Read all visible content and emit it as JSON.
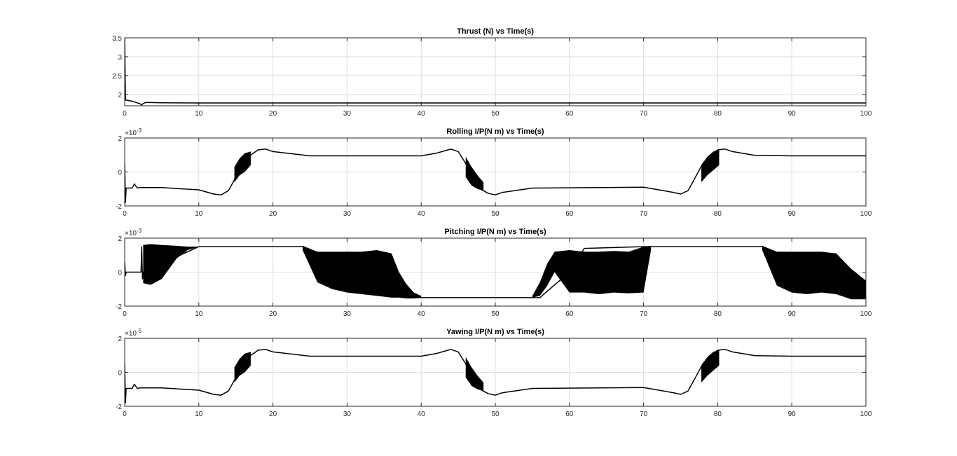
{
  "figure": {
    "background": "#ffffff",
    "line_color": "#000000",
    "grid": true
  },
  "chart_data": [
    {
      "type": "line",
      "title": "Thrust (N) vs Time(s)",
      "xlim": [
        0,
        100
      ],
      "ylim": [
        1.7,
        3.5
      ],
      "xticks": [
        "0",
        "10",
        "20",
        "30",
        "40",
        "50",
        "60",
        "70",
        "80",
        "90",
        "100"
      ],
      "yticks": [
        {
          "v": 2,
          "label": "2"
        },
        {
          "v": 2.5,
          "label": "2.5"
        },
        {
          "v": 3,
          "label": "3"
        },
        {
          "v": 3.5,
          "label": "3.5"
        }
      ],
      "exponent": "",
      "x": [
        0,
        0.1,
        0.2,
        1,
        1.5,
        2,
        2.3,
        2.5,
        2.8,
        3.5,
        5,
        10,
        20,
        40,
        60,
        80,
        100
      ],
      "y": [
        3.5,
        1.85,
        1.85,
        1.82,
        1.79,
        1.76,
        1.72,
        1.76,
        1.785,
        1.785,
        1.78,
        1.775,
        1.775,
        1.775,
        1.775,
        1.775,
        1.775
      ],
      "bands": []
    },
    {
      "type": "line",
      "title": "Rolling I/P(N m) vs Time(s)",
      "xlim": [
        0,
        100
      ],
      "ylim": [
        -2,
        2
      ],
      "xticks": [
        "0",
        "10",
        "20",
        "30",
        "40",
        "50",
        "60",
        "70",
        "80",
        "90",
        "100"
      ],
      "yticks": [
        {
          "v": -2,
          "label": "-2"
        },
        {
          "v": 0,
          "label": "0"
        },
        {
          "v": 2,
          "label": "2"
        }
      ],
      "exponent": "-3",
      "x": [
        0,
        0.1,
        0.2,
        0.3,
        1,
        1.3,
        1.7,
        2,
        5,
        10,
        12,
        13,
        14,
        15,
        16,
        17,
        18,
        19,
        20,
        25,
        35,
        40,
        42,
        44,
        45,
        46,
        47,
        48,
        49,
        50,
        51,
        55,
        70,
        74,
        75,
        76,
        77,
        78,
        79,
        80,
        81,
        82,
        85,
        90,
        100
      ],
      "y": [
        0.5,
        -1.8,
        -0.95,
        -0.95,
        -0.95,
        -0.7,
        -0.95,
        -0.92,
        -0.92,
        -1.05,
        -1.3,
        -1.35,
        -1.1,
        -0.3,
        0.4,
        1.0,
        1.3,
        1.35,
        1.2,
        0.95,
        0.95,
        0.95,
        1.1,
        1.35,
        1.2,
        0.5,
        -0.4,
        -1.0,
        -1.25,
        -1.35,
        -1.2,
        -0.95,
        -0.9,
        -1.2,
        -1.3,
        -1.1,
        -0.3,
        0.5,
        1.0,
        1.3,
        1.35,
        1.2,
        0.98,
        0.95,
        0.95
      ],
      "bands": [
        {
          "x": [
            14.8,
            15.5,
            16.2,
            17.0
          ],
          "lo": [
            -0.6,
            -0.2,
            0.0,
            0.4
          ],
          "hi": [
            0.3,
            0.8,
            1.1,
            1.2
          ]
        },
        {
          "x": [
            46.0,
            46.8,
            47.6,
            48.4
          ],
          "lo": [
            -0.3,
            -0.8,
            -1.0,
            -1.1
          ],
          "hi": [
            0.9,
            0.3,
            -0.2,
            -0.6
          ]
        },
        {
          "x": [
            77.8,
            78.6,
            79.4,
            80.2
          ],
          "lo": [
            -0.6,
            -0.2,
            0.1,
            0.4
          ],
          "hi": [
            0.4,
            0.9,
            1.2,
            1.3
          ]
        }
      ]
    },
    {
      "type": "line",
      "title": "Pitching I/P(N m) vs Time(s)",
      "xlim": [
        0,
        100
      ],
      "ylim": [
        -2,
        2
      ],
      "xticks": [
        "0",
        "10",
        "20",
        "30",
        "40",
        "50",
        "60",
        "70",
        "80",
        "90",
        "100"
      ],
      "yticks": [
        {
          "v": -2,
          "label": "-2"
        },
        {
          "v": 0,
          "label": "0"
        },
        {
          "v": 2,
          "label": "2"
        }
      ],
      "exponent": "-3",
      "x": [
        0,
        0.1,
        0.2,
        2.2,
        2.3,
        2.4,
        2.5,
        10,
        20,
        24,
        30,
        36,
        38,
        40,
        50,
        54,
        56,
        60,
        62,
        70,
        80,
        86,
        90,
        95,
        100
      ],
      "y": [
        0.6,
        -0.2,
        0.0,
        0.0,
        1.5,
        -0.4,
        0.0,
        1.5,
        1.5,
        1.5,
        0.0,
        -1.4,
        -1.5,
        -1.5,
        -1.5,
        -1.5,
        -1.5,
        0.0,
        1.4,
        1.5,
        1.5,
        1.5,
        0.0,
        -1.0,
        -0.9
      ],
      "bands": [
        {
          "x": [
            2.5,
            3.5,
            5.0,
            7.0,
            8.5,
            10.0
          ],
          "lo": [
            -0.65,
            -0.75,
            -0.4,
            0.8,
            1.3,
            1.5
          ],
          "hi": [
            1.6,
            1.65,
            1.6,
            1.55,
            1.5,
            1.5
          ]
        },
        {
          "x": [
            24.0,
            26.0,
            28.0,
            30.0,
            32.0,
            34.0,
            36.0,
            37.0,
            38.0,
            39.0,
            40.0
          ],
          "lo": [
            1.3,
            -0.6,
            -1.0,
            -1.2,
            -1.3,
            -1.4,
            -1.5,
            -1.5,
            -1.55,
            -1.55,
            -1.5
          ],
          "hi": [
            1.55,
            1.2,
            1.2,
            1.2,
            1.2,
            1.3,
            1.1,
            0.0,
            -0.7,
            -1.2,
            -1.4
          ]
        },
        {
          "x": [
            55.0,
            56.0,
            57.0,
            58.0,
            60.0,
            62.0,
            64.0,
            66.0,
            68.0,
            70.0,
            71.0
          ],
          "lo": [
            -1.5,
            -1.4,
            -0.8,
            0.0,
            -1.2,
            -1.2,
            -1.3,
            -1.2,
            -1.25,
            -1.2,
            1.3
          ],
          "hi": [
            -1.4,
            -0.6,
            0.5,
            1.2,
            1.3,
            1.2,
            1.2,
            1.25,
            1.2,
            1.5,
            1.55
          ]
        },
        {
          "x": [
            86.0,
            88.0,
            90.0,
            92.0,
            94.0,
            96.0,
            98.0,
            100.0
          ],
          "lo": [
            1.3,
            -0.8,
            -1.2,
            -1.3,
            -1.2,
            -1.3,
            -1.6,
            -1.6
          ],
          "hi": [
            1.55,
            1.2,
            1.2,
            1.2,
            1.2,
            1.1,
            0.2,
            -0.5
          ]
        }
      ]
    },
    {
      "type": "line",
      "title": "Yawing I/P(N m) vs Time(s)",
      "xlim": [
        0,
        100
      ],
      "ylim": [
        -2,
        2
      ],
      "xticks": [
        "0",
        "10",
        "20",
        "30",
        "40",
        "50",
        "60",
        "70",
        "80",
        "90",
        "100"
      ],
      "yticks": [
        {
          "v": -2,
          "label": "-2"
        },
        {
          "v": 0,
          "label": "0"
        },
        {
          "v": 2,
          "label": "2"
        }
      ],
      "exponent": "-5",
      "x": [
        0,
        0.1,
        0.2,
        0.3,
        1,
        1.3,
        1.7,
        2,
        5,
        10,
        12,
        13,
        14,
        15,
        16,
        17,
        18,
        19,
        20,
        25,
        35,
        40,
        42,
        44,
        45,
        46,
        47,
        48,
        49,
        50,
        51,
        55,
        70,
        74,
        75,
        76,
        77,
        78,
        79,
        80,
        81,
        82,
        85,
        90,
        100
      ],
      "y": [
        0.5,
        -1.8,
        -0.95,
        -0.95,
        -0.95,
        -0.7,
        -0.95,
        -0.92,
        -0.92,
        -1.05,
        -1.3,
        -1.35,
        -1.1,
        -0.3,
        0.4,
        1.0,
        1.3,
        1.35,
        1.2,
        0.95,
        0.95,
        0.95,
        1.1,
        1.35,
        1.2,
        0.5,
        -0.4,
        -1.0,
        -1.25,
        -1.35,
        -1.2,
        -0.95,
        -0.9,
        -1.2,
        -1.3,
        -1.1,
        -0.3,
        0.5,
        1.0,
        1.3,
        1.35,
        1.2,
        0.98,
        0.95,
        0.95
      ],
      "bands": [
        {
          "x": [
            14.8,
            15.5,
            16.2,
            17.0
          ],
          "lo": [
            -0.6,
            -0.2,
            0.0,
            0.4
          ],
          "hi": [
            0.3,
            0.8,
            1.1,
            1.2
          ]
        },
        {
          "x": [
            46.0,
            46.8,
            47.6,
            48.4
          ],
          "lo": [
            -0.3,
            -0.8,
            -1.0,
            -1.1
          ],
          "hi": [
            0.9,
            0.3,
            -0.2,
            -0.6
          ]
        },
        {
          "x": [
            77.8,
            78.6,
            79.4,
            80.2
          ],
          "lo": [
            -0.6,
            -0.2,
            0.1,
            0.4
          ],
          "hi": [
            0.4,
            0.9,
            1.2,
            1.3
          ]
        }
      ]
    }
  ]
}
